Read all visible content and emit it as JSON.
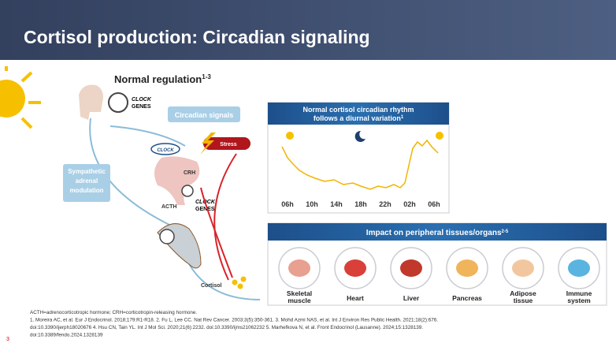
{
  "header": {
    "title": "Cortisol production: Circadian signaling"
  },
  "diagram": {
    "subtitle": "Normal regulation",
    "subtitle_ref": "1-3",
    "clock_genes_top": [
      "CLOCK",
      "GENES"
    ],
    "circadian_signals": "Circadian signals",
    "clock_badge": "CLOCK",
    "stress": "Stress",
    "crh": "CRH",
    "acth": "ACTH",
    "clock_genes_mid": [
      "CLOCK",
      "GENES"
    ],
    "sympathetic": [
      "Sympathetic",
      "adrenal",
      "modulation"
    ],
    "cortisol": "Cortisol"
  },
  "rhythm": {
    "title": [
      "Normal cortisol circadian rhythm",
      "follows a diurnal variation"
    ],
    "title_ref": "1",
    "x_labels": [
      "06h",
      "10h",
      "14h",
      "18h",
      "22h",
      "02h",
      "06h"
    ]
  },
  "impact": {
    "title": "Impact on peripheral tissues/organs",
    "title_ref": "2-5",
    "tissues": [
      [
        "Skeletal",
        "muscle"
      ],
      [
        "Heart"
      ],
      [
        "Liver"
      ],
      [
        "Pancreas"
      ],
      [
        "Adipose",
        "tissue"
      ],
      [
        "Immune",
        "system"
      ]
    ]
  },
  "footnotes": [
    "ACTH=adrenocorticotropic hormone; CRH=corticotropin-releasing hormone.",
    "1. Moreira AC, et al. Eur J Endocrinol. 2018;179:R1-R18. 2. Fu L, Lee CC. Nat Rev Cancer. 2003;3(5):350-361. 3. Mohd Azmi NAS, et al. Int J Environ Res Public Health. 2021;18(2):676.",
    "doi:10.3390/ijerph18020676  4. Hsu CN, Tain YL. Int J Mol Sci. 2020;21(6):2232. doi:10.3390/ijms21062232  5. Marhefkova N, et al. Front Endocrinol (Lausanne). 2024;15:1328139.",
    "doi:10.3389/fendo.2024.1328139"
  ],
  "page_number": "3"
}
